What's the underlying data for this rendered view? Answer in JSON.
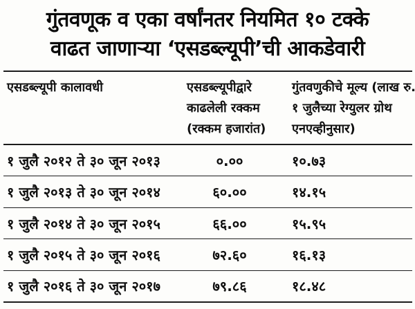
{
  "title": {
    "line1": "गुंतवणूक व एका वर्षांनतर नियमित १० टक्के",
    "line2": "वाढत जाणाऱ्या ‘एसडब्ल्यूपी’ची आकडेवारी"
  },
  "table": {
    "headers": {
      "col1": "एसडब्ल्यूपी कालावधी",
      "col2_line1": "एसडब्ल्यूपीद्वारे",
      "col2_line2": "काढलेली रक्कम",
      "col2_line3": "(रक्कम हजारांत)",
      "col3_line1": "गुंतवणुकीचे मूल्य (लाख रु.)",
      "col3_line2": "१ जुलैच्या रेग्युलर ग्रोथ",
      "col3_line3": "एनएव्हीनुसार)"
    },
    "rows": [
      {
        "period": "१ जुलै २०१२ ते ३० जून २०१३",
        "withdrawn": "०.००",
        "value": "१०.७३"
      },
      {
        "period": "१ जुलै २०१३ ते ३० जून २०१४",
        "withdrawn": "६०.००",
        "value": "१४.१५"
      },
      {
        "period": "१ जुलै २०१४ ते ३० जून २०१५",
        "withdrawn": "६६.००",
        "value": "१५.९५"
      },
      {
        "period": "१ जुलै २०१५ ते ३० जून २०१६",
        "withdrawn": "७२.६०",
        "value": "१६.१३"
      },
      {
        "period": "१ जुलै २०१६ ते ३० जून २०१७",
        "withdrawn": "७९.८६",
        "value": "१८.४८"
      }
    ]
  },
  "chart_data": {
    "type": "table",
    "title": "गुंतवणूक व एका वर्षांनतर नियमित १० टक्के वाढत जाणाऱ्या ‘एसडब्ल्यूपी’ची आकडेवारी",
    "columns": [
      "एसडब्ल्यूपी कालावधी",
      "एसडब्ल्यूपीद्वारे काढलेली रक्कम (रक्कम हजारांत)",
      "गुंतवणुकीचे मूल्य (लाख रु.) १ जुलैच्या रेग्युलर ग्रोथ एनएव्हीनुसार)"
    ],
    "periods": [
      "१ जुलै २०१२ ते ३० जून २०१३",
      "१ जुलै २०१३ ते ३० जून २०१४",
      "१ जुलै २०१४ ते ३० जून २०१५",
      "१ जुलै २०१५ ते ३० जून २०१६",
      "१ जुलै २०१६ ते ३० जून २०१७"
    ],
    "withdrawn_thousands": [
      0.0,
      60.0,
      66.0,
      72.6,
      79.86
    ],
    "investment_value_lakhs": [
      10.73,
      14.15,
      15.95,
      16.13,
      18.48
    ]
  },
  "colors": {
    "background": "#fdfdfb",
    "text": "#0a0a0a",
    "rule": "#1c1c1c"
  }
}
